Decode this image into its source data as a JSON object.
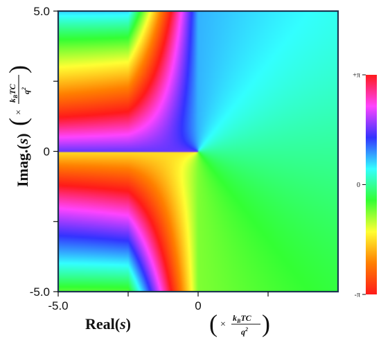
{
  "chart_data": {
    "type": "heatmap",
    "description_free": true,
    "xlim": [
      -5.0,
      5.0
    ],
    "ylim": [
      -5.0,
      5.0
    ],
    "x_ticks": [
      {
        "value": -5.0,
        "label": "-5.0"
      },
      {
        "value": 0,
        "label": "0"
      }
    ],
    "y_ticks": [
      {
        "value": 5.0,
        "label": "5.0"
      },
      {
        "value": 0,
        "label": "0"
      },
      {
        "value": -5.0,
        "label": "-5.0"
      }
    ],
    "x_minor_ticks": [
      -2.5,
      2.5
    ],
    "y_minor_ticks": [
      -2.5,
      2.5
    ],
    "xlabel": {
      "main": "Real(",
      "var": "s",
      "close": ")",
      "unit_prefix": "×",
      "unit_numerator": "k",
      "unit_numerator_sub": "B",
      "unit_numerator_rest": "TC",
      "unit_denominator": "q",
      "unit_denominator_sup": "2"
    },
    "ylabel": {
      "main": "Imag.(",
      "var": "s",
      "close": ")",
      "unit_prefix": "×",
      "unit_numerator": "k",
      "unit_numerator_sub": "B",
      "unit_numerator_rest": "TC",
      "unit_denominator": "q",
      "unit_denominator_sup": "2"
    },
    "colorbar": {
      "range": [
        -3.14159,
        3.14159
      ],
      "ticks": [
        {
          "value": 3.14159,
          "label": "+π"
        },
        {
          "value": 0,
          "label": "0"
        },
        {
          "value": -3.14159,
          "label": "-π"
        }
      ],
      "colors": [
        "#ff1a1a",
        "#ff44ff",
        "#3333ff",
        "#33ffff",
        "#33ff33",
        "#ffff33",
        "#ff7f00",
        "#ff1a1a"
      ]
    },
    "colors": {
      "frame": "#1b3550"
    }
  }
}
